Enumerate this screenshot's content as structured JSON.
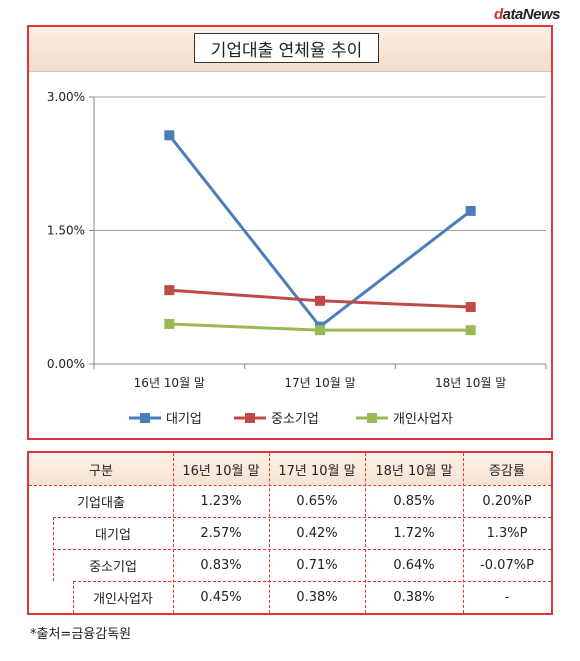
{
  "logo": {
    "first_letter": "d",
    "rest": "ataNews"
  },
  "chart_data": {
    "type": "line",
    "title": "기업대출 연체율 추이",
    "categories": [
      "16년 10월 말",
      "17년 10월 말",
      "18년 10월 말"
    ],
    "y_ticks": [
      "3.00%",
      "1.50%",
      "0.00%"
    ],
    "ylim": [
      0,
      3.0
    ],
    "grid": true,
    "legend_position": "bottom",
    "series": [
      {
        "name": "대기업",
        "values": [
          2.57,
          0.42,
          1.72
        ],
        "color": "#4a7ebb"
      },
      {
        "name": "중소기업",
        "values": [
          0.83,
          0.71,
          0.64
        ],
        "color": "#be4b48"
      },
      {
        "name": "개인사업자",
        "values": [
          0.45,
          0.38,
          0.38
        ],
        "color": "#98b954"
      }
    ]
  },
  "table": {
    "headers": [
      "구분",
      "16년 10월 말",
      "17년 10월 말",
      "18년 10월 말",
      "증감률"
    ],
    "rows": [
      [
        "기업대출",
        "1.23%",
        "0.65%",
        "0.85%",
        "0.20%P"
      ],
      [
        "대기업",
        "2.57%",
        "0.42%",
        "1.72%",
        "1.3%P"
      ],
      [
        "중소기업",
        "0.83%",
        "0.71%",
        "0.64%",
        "-0.07%P"
      ],
      [
        "개인사업자",
        "0.45%",
        "0.38%",
        "0.38%",
        "-"
      ]
    ]
  },
  "source": "*출처=금융감독원"
}
